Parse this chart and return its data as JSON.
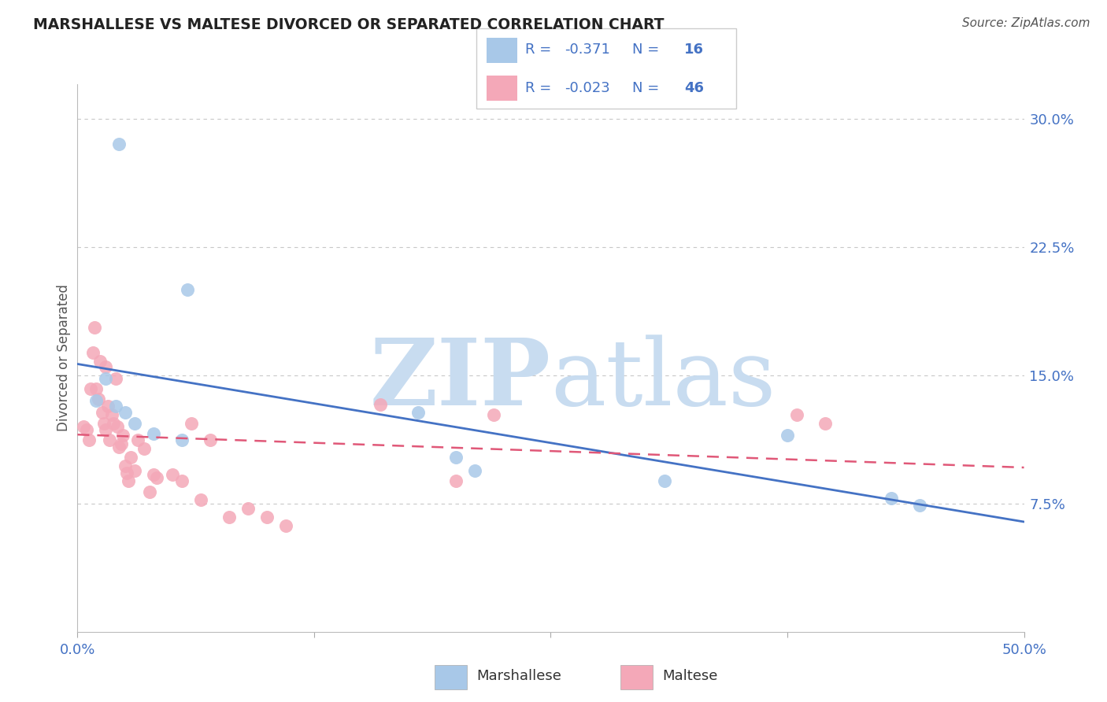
{
  "title": "MARSHALLESE VS MALTESE DIVORCED OR SEPARATED CORRELATION CHART",
  "source": "Source: ZipAtlas.com",
  "ylabel": "Divorced or Separated",
  "xlim": [
    0.0,
    0.5
  ],
  "ylim": [
    0.0,
    0.32
  ],
  "marshallese_R": -0.371,
  "marshallese_N": 16,
  "maltese_R": -0.023,
  "maltese_N": 46,
  "blue_scatter_color": "#a8c8e8",
  "pink_scatter_color": "#f4a8b8",
  "blue_line_color": "#4472c4",
  "pink_line_color": "#e05878",
  "blue_text_color": "#4472c4",
  "pink_text_color": "#e05878",
  "title_color": "#222222",
  "source_color": "#555555",
  "grid_color": "#c8c8c8",
  "watermark_color": "#ddeeff",
  "ytick_positions": [
    0.075,
    0.15,
    0.225,
    0.3
  ],
  "ytick_labels": [
    "7.5%",
    "15.0%",
    "22.5%",
    "30.0%"
  ],
  "xtick_positions": [
    0.0,
    0.125,
    0.25,
    0.375,
    0.5
  ],
  "xtick_labels": [
    "0.0%",
    "",
    "",
    "",
    "50.0%"
  ],
  "marshallese_x": [
    0.022,
    0.058,
    0.015,
    0.02,
    0.025,
    0.03,
    0.04,
    0.055,
    0.18,
    0.2,
    0.21,
    0.31,
    0.375,
    0.43,
    0.445,
    0.01
  ],
  "marshallese_y": [
    0.285,
    0.2,
    0.148,
    0.132,
    0.128,
    0.122,
    0.116,
    0.112,
    0.128,
    0.102,
    0.094,
    0.088,
    0.115,
    0.078,
    0.074,
    0.135
  ],
  "maltese_x": [
    0.003,
    0.005,
    0.006,
    0.007,
    0.008,
    0.009,
    0.01,
    0.011,
    0.012,
    0.013,
    0.014,
    0.015,
    0.016,
    0.017,
    0.018,
    0.019,
    0.02,
    0.021,
    0.022,
    0.023,
    0.024,
    0.025,
    0.026,
    0.027,
    0.028,
    0.03,
    0.032,
    0.035,
    0.038,
    0.04,
    0.042,
    0.05,
    0.055,
    0.06,
    0.065,
    0.07,
    0.08,
    0.09,
    0.1,
    0.11,
    0.16,
    0.2,
    0.22,
    0.38,
    0.395,
    0.015
  ],
  "maltese_y": [
    0.12,
    0.118,
    0.112,
    0.142,
    0.163,
    0.178,
    0.142,
    0.136,
    0.158,
    0.128,
    0.122,
    0.118,
    0.132,
    0.112,
    0.127,
    0.122,
    0.148,
    0.12,
    0.108,
    0.11,
    0.115,
    0.097,
    0.093,
    0.088,
    0.102,
    0.094,
    0.112,
    0.107,
    0.082,
    0.092,
    0.09,
    0.092,
    0.088,
    0.122,
    0.077,
    0.112,
    0.067,
    0.072,
    0.067,
    0.062,
    0.133,
    0.088,
    0.127,
    0.127,
    0.122,
    0.155
  ]
}
